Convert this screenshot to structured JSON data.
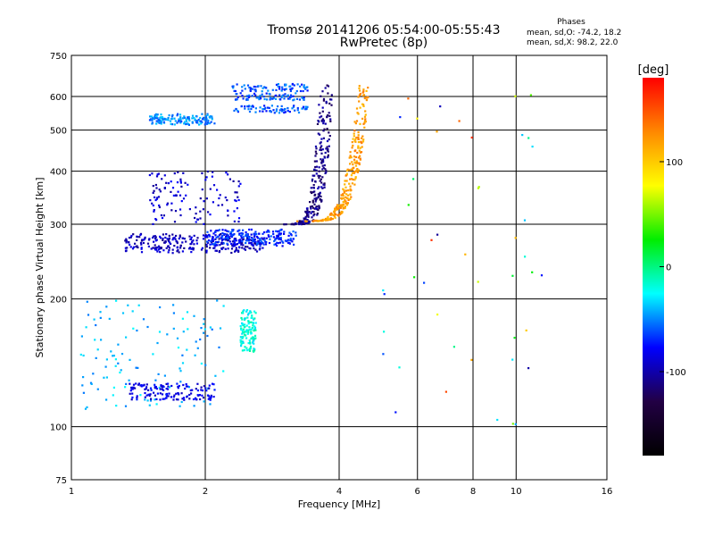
{
  "header": {
    "title_line1": "Tromsø 20141206 05:54:00-05:55:43",
    "title_line2": "RwPretec (8p)"
  },
  "info_box": {
    "title": "Phases",
    "line_o": "mean, sd,O: -74.2, 18.2",
    "line_x": "mean, sd,X:  98.2, 22.0"
  },
  "chart_data": {
    "type": "scatter",
    "xlabel": "Frequency [MHz]",
    "ylabel": "Stationary phase Virtual Height [km]",
    "x_scale": "log",
    "y_scale": "log",
    "xlim": [
      1,
      16
    ],
    "ylim": [
      75,
      750
    ],
    "x_ticks": [
      1,
      2,
      4,
      6,
      8,
      10,
      16
    ],
    "y_ticks": [
      75,
      100,
      200,
      300,
      400,
      500,
      600,
      750
    ],
    "grid": true,
    "colorbar": {
      "label": "[deg]",
      "range": [
        -180,
        180
      ],
      "ticks": [
        100,
        0,
        -100
      ],
      "colormap": [
        "#ff0000",
        "#ff8800",
        "#ffff00",
        "#00ee00",
        "#00ffff",
        "#0000ff",
        "#220044",
        "#000000"
      ]
    },
    "series": [
      {
        "type": "echo_band",
        "fmin": 1.32,
        "fmax": 2.7,
        "heights": [
          262,
          268,
          274,
          280
        ],
        "phase": -95
      },
      {
        "type": "echo_band",
        "fmin": 2.0,
        "fmax": 3.2,
        "heights": [
          272,
          280,
          286
        ],
        "phase": -70
      },
      {
        "type": "echo_curve",
        "fmin": 3.05,
        "fmax": 3.75,
        "h_start": 300,
        "h_end": 640,
        "width": 0.07,
        "phase": -110
      },
      {
        "type": "echo_curve",
        "fmin": 3.15,
        "fmax": 4.55,
        "h_start": 305,
        "h_end": 640,
        "width": 0.06,
        "phase": 120
      },
      {
        "type": "echo_band",
        "fmin": 1.5,
        "fmax": 2.1,
        "heights": [
          525,
          535
        ],
        "phase": -50
      },
      {
        "type": "echo_band",
        "fmin": 2.3,
        "fmax": 3.4,
        "heights": [
          560,
          600,
          630
        ],
        "phase": -60
      },
      {
        "type": "echo_cloud",
        "fmin": 1.05,
        "fmax": 2.2,
        "hmin": 110,
        "hmax": 200,
        "phase": -40
      },
      {
        "type": "echo_band",
        "fmin": 1.35,
        "fmax": 2.1,
        "heights": [
          118,
          124
        ],
        "phase": -85
      },
      {
        "type": "echo_cloud",
        "fmin": 2.4,
        "fmax": 2.6,
        "hmin": 150,
        "hmax": 190,
        "phase": -20
      },
      {
        "type": "echo_cloud",
        "fmin": 1.5,
        "fmax": 2.4,
        "hmin": 300,
        "hmax": 400,
        "phase": -90
      },
      {
        "type": "echo_cloud",
        "fmin": 5.0,
        "fmax": 11.5,
        "hmin": 90,
        "hmax": 620,
        "phase": 30
      }
    ]
  },
  "colors": {
    "grid": "#000000",
    "background": "#ffffff"
  }
}
